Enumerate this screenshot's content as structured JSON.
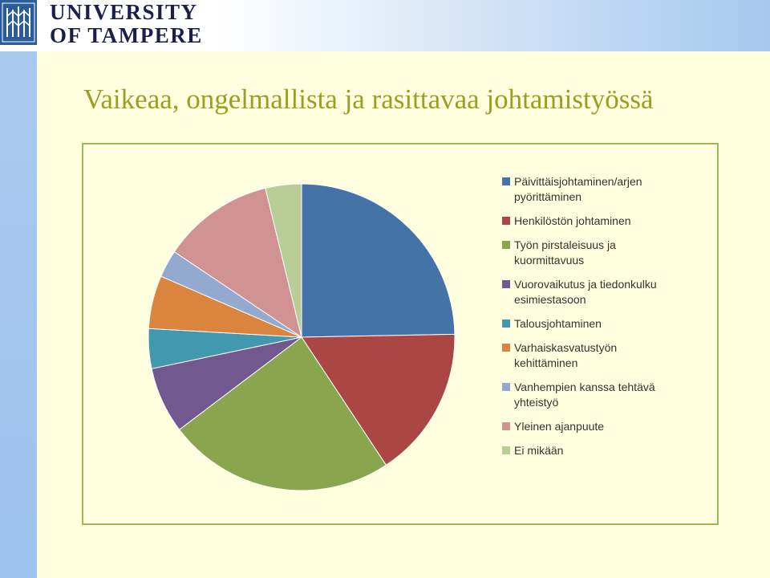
{
  "header": {
    "logo_line1": "UNIVERSITY",
    "logo_line2": "OF TAMPERE"
  },
  "slide": {
    "title": "Vaikeaa, ongelmallista ja rasittavaa johtamistyössä"
  },
  "colors": {
    "background": "#ffffe0",
    "title": "#9c9e1f",
    "frame": "#9bbb59",
    "logo": "#1a1f4d"
  },
  "chart_data": {
    "type": "pie",
    "title": "",
    "start_angle_deg": 0,
    "direction": "clockwise",
    "legend_position": "right",
    "categories": [
      "Päivittäisjohtaminen/arjen pyörittäminen",
      "Henkilöstön johtaminen",
      "Työn pirstaleisuus ja kuormittavuus",
      "Vuorovaikutus ja tiedonkulku esimiestasoon",
      "Talousjohtaminen",
      "Varhaiskasvatustyön kehittäminen",
      "Vanhempien kanssa tehtävä yhteistyö",
      "Yleinen ajanpuute",
      "Ei mikään"
    ],
    "values": [
      24.7,
      16.0,
      24.0,
      7.0,
      4.2,
      5.6,
      2.9,
      11.8,
      3.8
    ],
    "colors": [
      "#4572a7",
      "#aa4643",
      "#89a54e",
      "#71588f",
      "#4198af",
      "#db843d",
      "#93a9cf",
      "#d19392",
      "#b9cd96"
    ]
  }
}
